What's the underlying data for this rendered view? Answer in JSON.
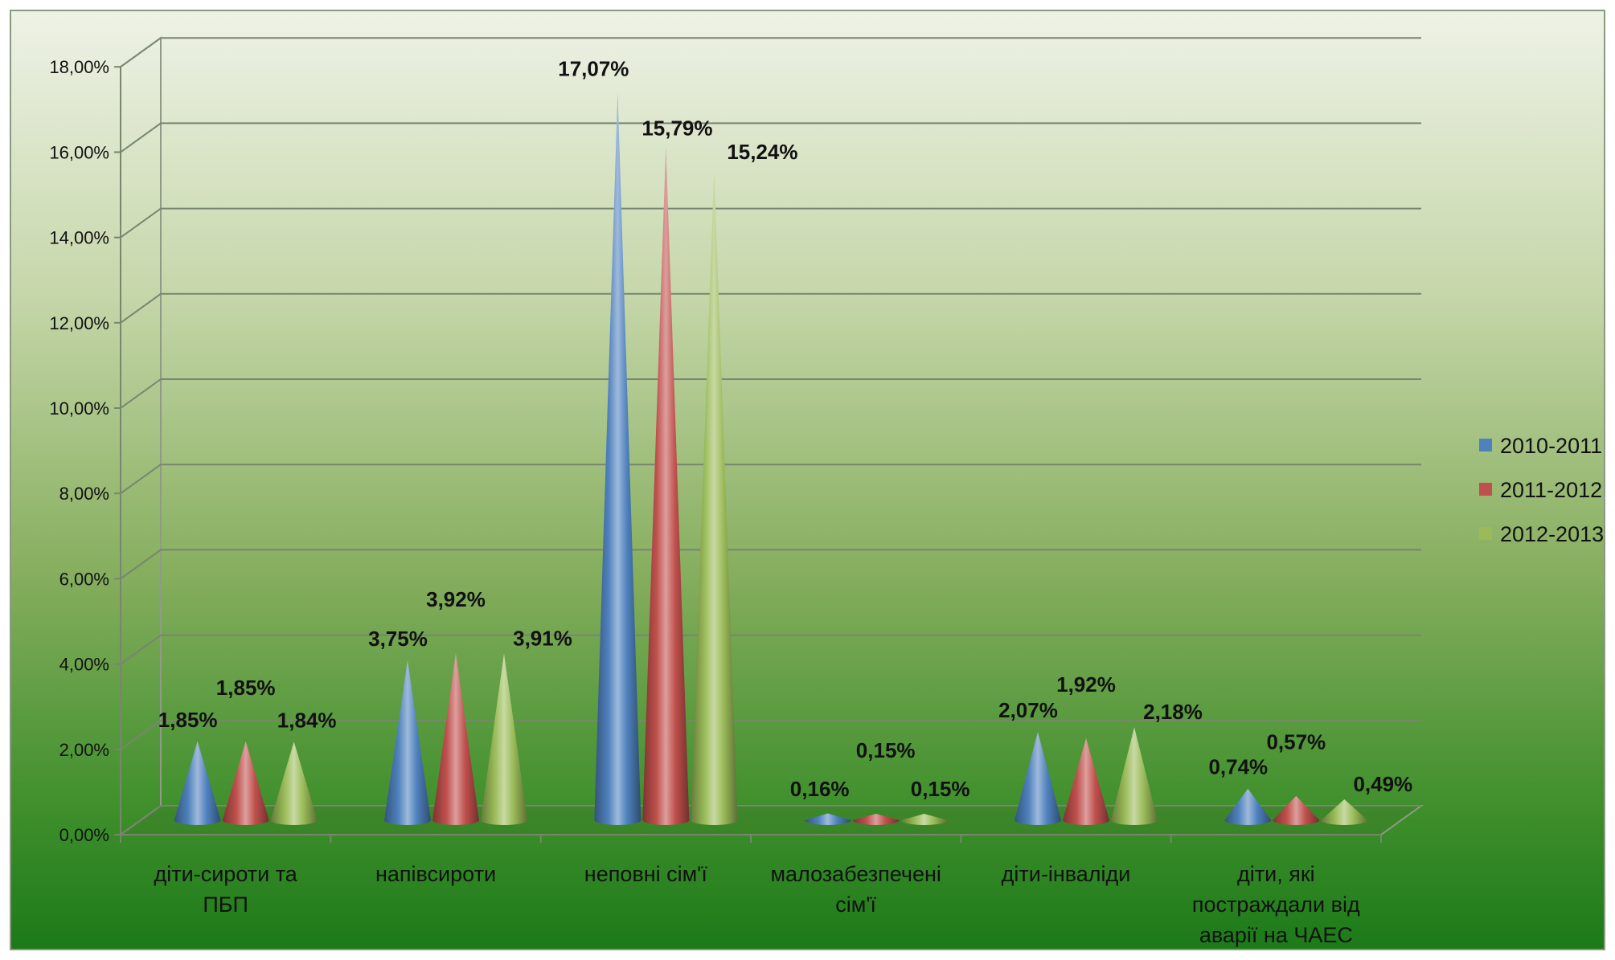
{
  "chart_data": {
    "type": "bar",
    "title": "",
    "xlabel": "",
    "ylabel": "",
    "ylim": [
      0,
      18
    ],
    "y_ticks": [
      "0,00%",
      "2,00%",
      "4,00%",
      "6,00%",
      "8,00%",
      "10,00%",
      "12,00%",
      "14,00%",
      "16,00%",
      "18,00%"
    ],
    "grid": true,
    "legend_position": "right",
    "categories": [
      [
        "діти-сироти та",
        "ПБП"
      ],
      [
        "напівсироти"
      ],
      [
        "неповні сім'ї"
      ],
      [
        "малозабезпечені",
        "сім'ї"
      ],
      [
        "діти-інваліди"
      ],
      [
        "діти, які",
        "постраждали від",
        "аварії на ЧАЕС"
      ]
    ],
    "series": [
      {
        "name": "2010-2011",
        "color": "#4f81bd",
        "values": [
          1.85,
          3.75,
          17.07,
          0.16,
          2.07,
          0.74
        ],
        "labels": [
          "1,85%",
          "3,75%",
          "17,07%",
          "0,16%",
          "2,07%",
          "0,74%"
        ]
      },
      {
        "name": "2011-2012",
        "color": "#c0504d",
        "values": [
          1.85,
          3.92,
          15.79,
          0.15,
          1.92,
          0.57
        ],
        "labels": [
          "1,85%",
          "3,92%",
          "15,79%",
          "0,15%",
          "1,92%",
          "0,57%"
        ]
      },
      {
        "name": "2012-2013",
        "color": "#9bbb59",
        "values": [
          1.84,
          3.91,
          15.24,
          0.15,
          2.18,
          0.49
        ],
        "labels": [
          "1,84%",
          "3,91%",
          "15,24%",
          "0,15%",
          "2,18%",
          "0,49%"
        ]
      }
    ]
  }
}
